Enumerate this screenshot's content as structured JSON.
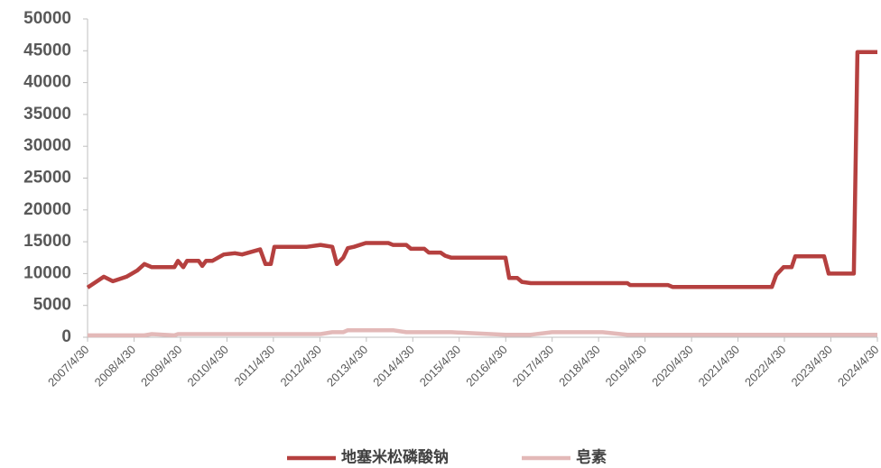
{
  "chart_data": {
    "type": "line",
    "x": [
      "2007/4/30",
      "2007/9/5",
      "2007/11/15",
      "2008/3/1",
      "2008/5/25",
      "2008/7/20",
      "2008/9/16",
      "2009/3/13",
      "2009/4/10",
      "2009/5/22",
      "2009/6/20",
      "2009/9/20",
      "2009/10/18",
      "2009/11/16",
      "2010/1/5",
      "2010/4/5",
      "2010/7/1",
      "2010/8/27",
      "2011/1/16",
      "2011/2/27",
      "2011/4/10",
      "2011/5/8",
      "2012/1/19",
      "2012/5/5",
      "2012/8/5",
      "2012/9/10",
      "2012/10/30",
      "2012/12/5",
      "2013/1/23",
      "2013/4/25",
      "2013/10/20",
      "2013/11/25",
      "2014/3/10",
      "2014/4/15",
      "2014/7/30",
      "2014/9/3",
      "2014/12/5",
      "2015/1/10",
      "2015/2/28",
      "2016/4/28",
      "2016/5/27",
      "2016/7/30",
      "2016/9/4",
      "2016/11/13",
      "2017/4/30",
      "2018/5/31",
      "2018/12/12",
      "2019/1/3",
      "2019/10/27",
      "2019/12/2",
      "2022/1/21",
      "2022/2/25",
      "2022/4/23",
      "2022/6/26",
      "2022/7/24",
      "2023/3/8",
      "2023/4/13",
      "2023/10/28",
      "2023/11/25",
      "2024/4/30"
    ],
    "series": [
      {
        "name": "地塞米松磷酸钠",
        "color": "#b5403f",
        "values": [
          7800,
          9500,
          8800,
          9500,
          10500,
          11500,
          11000,
          11000,
          12000,
          11000,
          12000,
          12000,
          11200,
          12000,
          12000,
          13000,
          13200,
          13000,
          13800,
          11500,
          11500,
          14200,
          14200,
          14500,
          14200,
          11500,
          12500,
          14000,
          14200,
          14800,
          14800,
          14500,
          14500,
          13900,
          13900,
          13300,
          13300,
          12800,
          12500,
          12500,
          9300,
          9300,
          8700,
          8500,
          8500,
          8500,
          8500,
          8200,
          8200,
          7900,
          7900,
          9800,
          11000,
          11000,
          12700,
          12700,
          10000,
          10000,
          44800,
          44800
        ]
      },
      {
        "name": "皂素",
        "color": "#e3b9b8",
        "values": [
          300,
          300,
          300,
          300,
          300,
          300,
          500,
          300,
          500,
          500,
          500,
          500,
          500,
          500,
          500,
          500,
          500,
          500,
          500,
          500,
          500,
          500,
          500,
          500,
          800,
          800,
          800,
          1100,
          1100,
          1100,
          1100,
          1100,
          800,
          800,
          800,
          800,
          800,
          800,
          800,
          400,
          400,
          400,
          400,
          400,
          800,
          800,
          400,
          400,
          400,
          400,
          400,
          400,
          400,
          400,
          400,
          400,
          400,
          400,
          400,
          400
        ]
      }
    ],
    "xlim": [
      "2007/4/30",
      "2024/4/30"
    ],
    "xticks": [
      "2007/4/30",
      "2008/4/30",
      "2009/4/30",
      "2010/4/30",
      "2011/4/30",
      "2012/4/30",
      "2013/4/30",
      "2014/4/30",
      "2015/4/30",
      "2016/4/30",
      "2017/4/30",
      "2018/4/30",
      "2019/4/30",
      "2020/4/30",
      "2021/4/30",
      "2022/4/30",
      "2023/4/30",
      "2024/4/30"
    ],
    "ylim": [
      0,
      50000
    ],
    "yticks": [
      0,
      5000,
      10000,
      15000,
      20000,
      25000,
      30000,
      35000,
      40000,
      45000,
      50000
    ],
    "grid": false,
    "legend": "bottom"
  }
}
